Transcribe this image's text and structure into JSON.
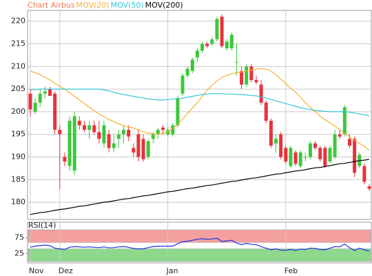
{
  "chart_data": [
    {
      "type": "candlestick",
      "categories": [
        "Nov",
        null,
        null,
        null,
        null,
        null,
        "Dez",
        null,
        null,
        null,
        null,
        null,
        null,
        null,
        null,
        null,
        null,
        null,
        null,
        null,
        null,
        null,
        null,
        null,
        null,
        null,
        null,
        null,
        "Jan",
        null,
        null,
        null,
        null,
        null,
        null,
        null,
        null,
        null,
        null,
        null,
        null,
        null,
        null,
        null,
        null,
        null,
        null,
        null,
        null,
        null,
        null,
        null,
        "Feb",
        null,
        null,
        null,
        null,
        null,
        null,
        null,
        null,
        null,
        null,
        null,
        null,
        null,
        null,
        null,
        null,
        null
      ],
      "series": [
        {
          "name": "Chart Airbus",
          "color": "#f07850",
          "up_color": "#3cc83c",
          "down_color": "#e8323c",
          "open": [
            204,
            200,
            202,
            204,
            205,
            204,
            196,
            190,
            188,
            187,
            198,
            197,
            196,
            197,
            195.5,
            193,
            195,
            192,
            194,
            195,
            196,
            192,
            195,
            194,
            190,
            194,
            195,
            196.5,
            195,
            195,
            197,
            204,
            208,
            209,
            212,
            213.5,
            215,
            215,
            216,
            221,
            214,
            214,
            211,
            209,
            206,
            210,
            207,
            206,
            202,
            198,
            193,
            195,
            192,
            188,
            191,
            188,
            190,
            190,
            193,
            192,
            192,
            189,
            190,
            195,
            195,
            194,
            194,
            188,
            188,
            183.5
          ],
          "high": [
            205,
            203,
            205,
            205.5,
            205.5,
            204.5,
            197,
            191,
            199,
            200,
            199,
            198,
            198,
            198,
            198,
            198,
            196,
            195,
            196,
            197,
            197,
            193,
            196,
            195,
            194,
            195.5,
            196.5,
            197,
            196.5,
            197.5,
            203.5,
            208.5,
            210,
            212,
            214,
            215.5,
            215.5,
            216.5,
            221,
            221.5,
            216,
            217.5,
            215,
            210,
            210.5,
            210.5,
            208,
            207,
            202.5,
            198.5,
            195,
            195.5,
            192.5,
            192.5,
            191.5,
            191.5,
            191,
            193.5,
            193.5,
            192.5,
            192.5,
            192.5,
            196,
            196,
            201.5,
            195,
            194.5,
            191,
            188.5,
            184
          ],
          "low": [
            199,
            199.5,
            201,
            203,
            203.5,
            195,
            183,
            188,
            187,
            186,
            196,
            195.5,
            194,
            195,
            193,
            192,
            191,
            191,
            192,
            193,
            193.5,
            190,
            189,
            189,
            189.5,
            193,
            194,
            195,
            194.5,
            194.5,
            196.5,
            203.5,
            207.5,
            208.5,
            211,
            213,
            214,
            214.5,
            215.5,
            214,
            213.5,
            213.5,
            208,
            205,
            205.5,
            206.5,
            206,
            201.5,
            197.5,
            192,
            191,
            189.5,
            188.5,
            187.5,
            188,
            187.5,
            189,
            189.5,
            191.5,
            189,
            187.5,
            188.5,
            189.5,
            194,
            194.5,
            192,
            185.5,
            187.5,
            184,
            182.5
          ],
          "close": [
            200.5,
            202,
            204,
            204.5,
            203.5,
            196,
            195,
            189,
            198,
            199,
            197,
            196,
            197,
            195.5,
            194,
            197,
            192,
            193,
            195,
            196,
            194.5,
            191,
            190,
            189.5,
            193.5,
            195,
            196,
            196,
            196,
            197,
            203,
            208,
            209.5,
            211.5,
            213.5,
            215,
            214.5,
            216,
            220.5,
            214.5,
            215.5,
            217,
            211,
            206,
            210,
            207,
            206.5,
            202,
            198,
            192.5,
            194,
            190,
            189,
            192,
            188.5,
            191,
            190,
            193,
            192,
            189.5,
            188,
            192,
            195,
            194.5,
            201,
            192.5,
            186.5,
            190.5,
            184.5,
            183
          ]
        },
        {
          "name": "MOV(20)",
          "color": "#f5b030",
          "values": [
            209,
            208.6,
            208.2,
            207.6,
            207,
            206.3,
            205.6,
            205,
            204.2,
            203.4,
            202.6,
            201.8,
            201,
            200.2,
            199.5,
            198.9,
            198.3,
            197.8,
            197.3,
            196.9,
            196.6,
            196.4,
            196,
            195.6,
            195.3,
            195.1,
            195,
            195.2,
            195.6,
            196.3,
            197.2,
            198.4,
            199.6,
            200.8,
            202,
            203.4,
            204.8,
            205.8,
            206.8,
            207.6,
            208,
            208.4,
            208.6,
            208.8,
            209,
            209.2,
            209.4,
            209.5,
            209.4,
            209,
            208.2,
            207.2,
            206.2,
            205.2,
            204.4,
            203.2,
            202,
            201,
            200,
            199,
            198.2,
            197.5,
            196.8,
            196,
            195.2,
            194.5,
            193.7,
            193,
            192.3,
            191.5
          ]
        },
        {
          "name": "MOV(50)",
          "color": "#30c8d8",
          "values": [
            204.8,
            204.9,
            205,
            205,
            205,
            205,
            205,
            205,
            205,
            205,
            205,
            205,
            205,
            205,
            205,
            204.8,
            204.6,
            204.3,
            204,
            203.8,
            203.6,
            203.4,
            203.2,
            203,
            202.8,
            202.7,
            202.6,
            202.6,
            202.7,
            202.8,
            202.9,
            203,
            203.2,
            203.4,
            203.6,
            203.8,
            203.9,
            204,
            204,
            204,
            203.9,
            203.9,
            203.8,
            203.8,
            203.7,
            203.6,
            203.5,
            203.3,
            203,
            202.7,
            202.4,
            202.1,
            201.8,
            201.5,
            201.2,
            200.9,
            200.7,
            200.5,
            200.3,
            200.2,
            200.1,
            200,
            200,
            200,
            200,
            199.9,
            199.7,
            199.5,
            199.3,
            199.1
          ]
        },
        {
          "name": "MOV(200)",
          "color": "#000000",
          "values": [
            177.3,
            177.5,
            177.7,
            177.8,
            178,
            178.2,
            178.4,
            178.5,
            178.7,
            178.9,
            179.1,
            179.2,
            179.4,
            179.6,
            179.8,
            180,
            180.1,
            180.3,
            180.5,
            180.7,
            180.8,
            181,
            181.2,
            181.4,
            181.5,
            181.7,
            181.9,
            182.1,
            182.3,
            182.4,
            182.6,
            182.8,
            183,
            183.1,
            183.3,
            183.5,
            183.7,
            183.8,
            184,
            184.2,
            184.4,
            184.6,
            184.7,
            184.9,
            185.1,
            185.3,
            185.4,
            185.6,
            185.8,
            186,
            186.2,
            186.3,
            186.5,
            186.7,
            186.9,
            187,
            187.2,
            187.4,
            187.6,
            187.7,
            187.9,
            188.1,
            188.3,
            188.5,
            188.6,
            188.8,
            189,
            189.2,
            189.3,
            189.5
          ]
        }
      ],
      "ylim": [
        176.2,
        222.4
      ],
      "yticks": [
        180,
        185,
        190,
        195,
        200,
        205,
        210,
        215,
        220
      ],
      "grid": true
    },
    {
      "type": "line",
      "title": "RSI(14)",
      "series": [
        {
          "color": "#2030e0",
          "values": [
            45,
            48,
            50,
            52,
            50,
            42,
            40,
            38,
            45,
            47,
            46,
            45,
            46,
            45,
            44,
            46,
            43,
            44,
            46,
            47,
            45,
            41,
            40,
            40,
            44,
            47,
            48,
            48,
            48,
            49,
            56,
            62,
            64,
            67,
            70,
            72,
            70,
            71,
            73,
            63,
            65,
            67,
            58,
            53,
            57,
            54,
            53,
            47,
            42,
            37,
            40,
            36,
            35,
            38,
            35,
            39,
            38,
            42,
            41,
            38,
            37,
            42,
            47,
            46,
            55,
            43,
            35,
            42,
            37,
            33
          ]
        }
      ],
      "bands": [
        {
          "range": [
            60,
            100
          ],
          "color": "#f4a0a0"
        },
        {
          "range": [
            0,
            40
          ],
          "color": "#8ed88e"
        }
      ],
      "ylim": [
        0,
        100
      ],
      "yticks": [
        25,
        75
      ]
    }
  ]
}
